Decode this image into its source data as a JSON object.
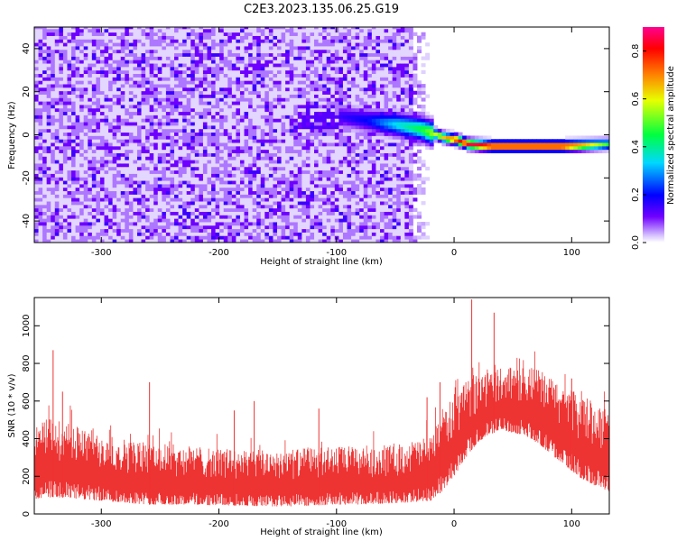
{
  "title": "C2E3.2023.135.06.25.G19",
  "chart_data": [
    {
      "type": "heatmap",
      "xlabel": "Height of straight line (km)",
      "ylabel": "Frequency (Hz)",
      "xlim": [
        -357,
        132
      ],
      "ylim": [
        -50,
        50
      ],
      "xticks": [
        -300,
        -200,
        -100,
        0,
        100
      ],
      "xtick_labels": [
        "-300",
        "-200",
        "-100",
        "0",
        "100"
      ],
      "yticks": [
        -40,
        -20,
        0,
        20,
        40
      ],
      "ytick_labels": [
        "-40",
        "-20",
        "0",
        "20",
        "40"
      ],
      "colorbar": {
        "label": "Normalized spectral amplitude",
        "range": [
          0.0,
          0.9
        ],
        "ticks": [
          0.0,
          0.2,
          0.4,
          0.6,
          0.8
        ],
        "tick_labels": [
          "0.0",
          "0.2",
          "0.4",
          "0.6",
          "0.8"
        ],
        "colors": [
          "#ffffff",
          "#7000ff",
          "#0000ff",
          "#00d8ff",
          "#00ff40",
          "#e8ff00",
          "#ff8000",
          "#ff0000",
          "#ff0090"
        ]
      },
      "noise_region_x": [
        -357,
        -35
      ],
      "noise_level": 0.1,
      "signal_track": [
        {
          "x": -100,
          "freq": 8,
          "amp": 0.15
        },
        {
          "x": -75,
          "freq": 6,
          "amp": 0.2
        },
        {
          "x": -50,
          "freq": 4,
          "amp": 0.35
        },
        {
          "x": -30,
          "freq": 2,
          "amp": 0.45
        },
        {
          "x": -10,
          "freq": -2,
          "amp": 0.65
        },
        {
          "x": 0,
          "freq": -3,
          "amp": 0.8
        },
        {
          "x": 10,
          "freq": -5,
          "amp": 0.85
        },
        {
          "x": 30,
          "freq": -6,
          "amp": 0.85
        },
        {
          "x": 60,
          "freq": -6,
          "amp": 0.85
        },
        {
          "x": 90,
          "freq": -6,
          "amp": 0.85
        },
        {
          "x": 132,
          "freq": -5,
          "amp": 0.45
        }
      ],
      "grid": false
    },
    {
      "type": "area",
      "xlabel": "Height of straight line (km)",
      "ylabel": "SNR (10 * v/v)",
      "xlim": [
        -357,
        132
      ],
      "ylim": [
        0,
        1150
      ],
      "xticks": [
        -300,
        -200,
        -100,
        0,
        100
      ],
      "xtick_labels": [
        "-300",
        "-200",
        "-100",
        "0",
        "100"
      ],
      "yticks": [
        0,
        200,
        400,
        600,
        800,
        1000
      ],
      "ytick_labels": [
        "0",
        "200",
        "400",
        "600",
        "800",
        "1000"
      ],
      "color": "#ee3333",
      "series": [
        {
          "x": [
            -357,
            -340,
            -320,
            -300,
            -280,
            -260,
            -240,
            -220,
            -200,
            -180,
            -160,
            -140,
            -120,
            -100,
            -80,
            -60,
            -40,
            -20,
            -10,
            0,
            10,
            20,
            30,
            40,
            50,
            60,
            70,
            80,
            90,
            100,
            110,
            120,
            132
          ],
          "upper": [
            480,
            520,
            470,
            430,
            400,
            380,
            370,
            360,
            350,
            340,
            340,
            345,
            350,
            360,
            360,
            370,
            380,
            420,
            560,
            620,
            700,
            740,
            760,
            780,
            790,
            790,
            770,
            740,
            700,
            660,
            620,
            600,
            560
          ],
          "lower": [
            80,
            90,
            80,
            70,
            60,
            50,
            50,
            50,
            45,
            45,
            40,
            40,
            45,
            50,
            50,
            55,
            60,
            70,
            120,
            200,
            300,
            380,
            420,
            450,
            430,
            420,
            380,
            330,
            280,
            230,
            180,
            150,
            120
          ],
          "spikes": [
            {
              "x": -341,
              "y": 870
            },
            {
              "x": -333,
              "y": 650
            },
            {
              "x": -259,
              "y": 700
            },
            {
              "x": -187,
              "y": 550
            },
            {
              "x": -170,
              "y": 600
            },
            {
              "x": -115,
              "y": 560
            },
            {
              "x": -23,
              "y": 620
            },
            {
              "x": -12,
              "y": 700
            },
            {
              "x": 15,
              "y": 1140
            },
            {
              "x": 34,
              "y": 1070
            },
            {
              "x": 100,
              "y": 720
            }
          ]
        }
      ],
      "grid": false
    }
  ]
}
